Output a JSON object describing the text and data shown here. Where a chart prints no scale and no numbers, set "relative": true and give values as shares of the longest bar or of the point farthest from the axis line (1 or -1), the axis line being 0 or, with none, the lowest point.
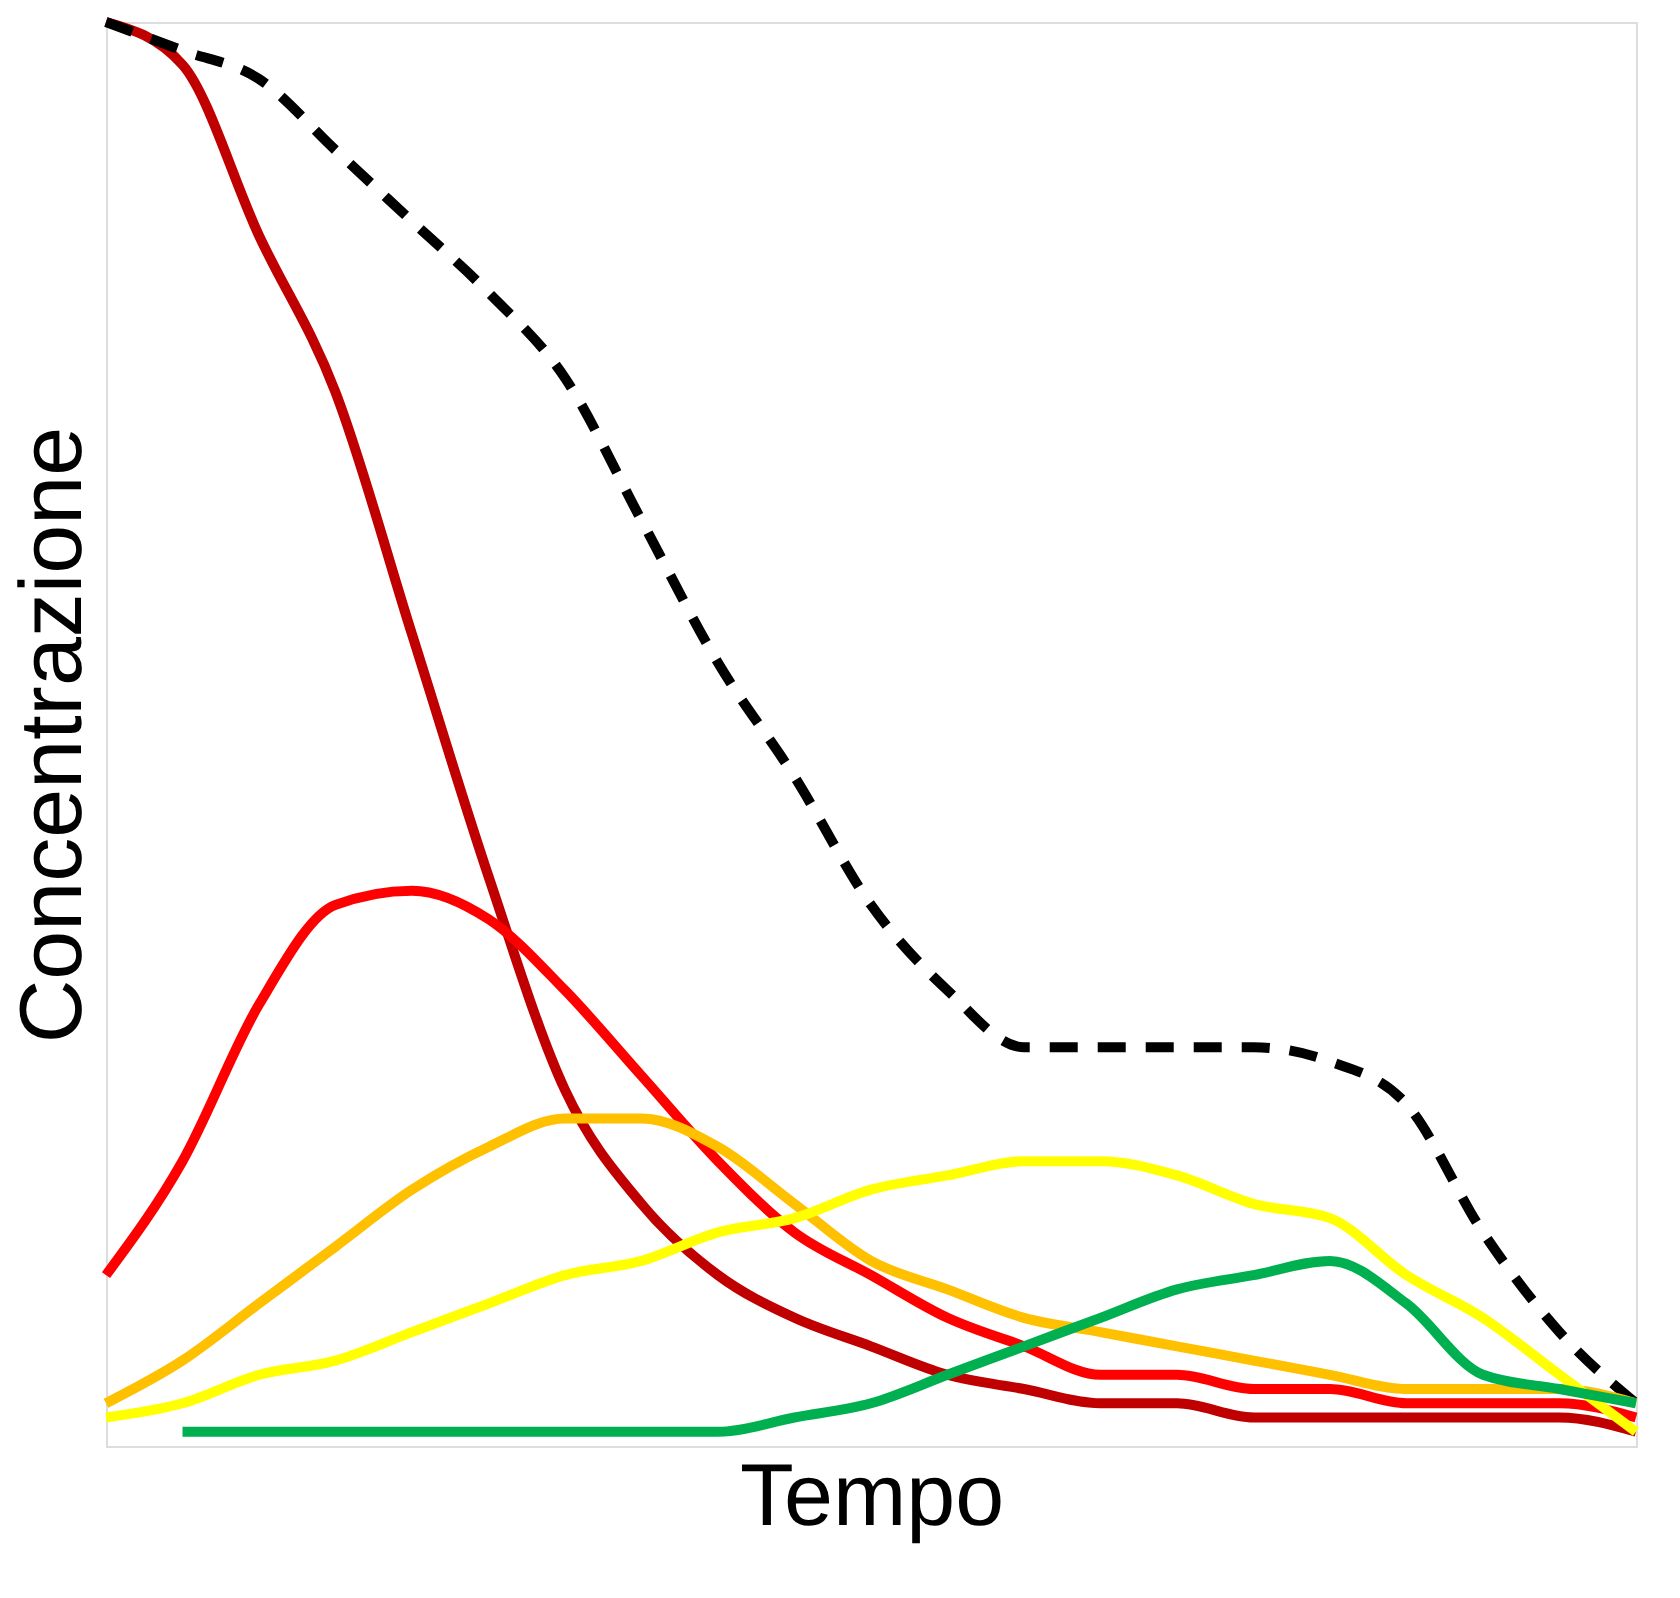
{
  "chart_data": {
    "type": "line",
    "relative": true,
    "xlabel": "Tempo",
    "ylabel": "Concentrazione",
    "grid": false,
    "tick_labels": false,
    "categories": [
      null,
      null,
      null,
      null,
      null,
      null,
      null,
      null,
      null,
      null,
      null,
      null,
      null,
      null,
      null,
      null,
      null,
      null,
      null,
      null,
      null
    ],
    "series": [
      {
        "color": "#c00000",
        "line_style": "solid",
        "values": [
          1.0,
          0.97,
          0.85,
          0.74,
          0.57,
          0.4,
          0.25,
          0.17,
          0.12,
          0.09,
          0.07,
          0.05,
          0.04,
          0.03,
          0.03,
          0.02,
          0.02,
          0.02,
          0.02,
          0.02,
          0.01
        ]
      },
      {
        "color": "#000000",
        "line_style": "dashed",
        "values": [
          1.0,
          0.98,
          0.96,
          0.91,
          0.86,
          0.81,
          0.75,
          0.65,
          0.55,
          0.47,
          0.38,
          0.32,
          0.28,
          0.28,
          0.28,
          0.28,
          0.27,
          0.24,
          0.15,
          0.08,
          0.03
        ]
      },
      {
        "color": "#ff0000",
        "line_style": "solid",
        "values": [
          0.12,
          0.2,
          0.31,
          0.38,
          0.39,
          0.37,
          0.32,
          0.26,
          0.2,
          0.15,
          0.12,
          0.09,
          0.07,
          0.05,
          0.05,
          0.04,
          0.04,
          0.03,
          0.03,
          0.03,
          0.02
        ]
      },
      {
        "color": "#ffc000",
        "line_style": "solid",
        "values": [
          0.03,
          0.06,
          0.1,
          0.14,
          0.18,
          0.21,
          0.23,
          0.23,
          0.21,
          0.17,
          0.13,
          0.11,
          0.09,
          0.08,
          0.07,
          0.06,
          0.05,
          0.04,
          0.04,
          0.04,
          0.03
        ]
      },
      {
        "color": "#ffff00",
        "line_style": "solid",
        "values": [
          0.02,
          0.03,
          0.05,
          0.06,
          0.08,
          0.1,
          0.12,
          0.13,
          0.15,
          0.16,
          0.18,
          0.19,
          0.2,
          0.2,
          0.19,
          0.17,
          0.16,
          0.12,
          0.09,
          0.05,
          0.01
        ]
      },
      {
        "color": "#00b050",
        "line_style": "solid",
        "values": [
          null,
          0.01,
          0.01,
          0.01,
          0.01,
          0.01,
          0.01,
          0.01,
          0.01,
          0.02,
          0.03,
          0.05,
          0.07,
          0.09,
          0.11,
          0.12,
          0.13,
          0.1,
          0.05,
          0.04,
          0.03
        ]
      }
    ]
  }
}
